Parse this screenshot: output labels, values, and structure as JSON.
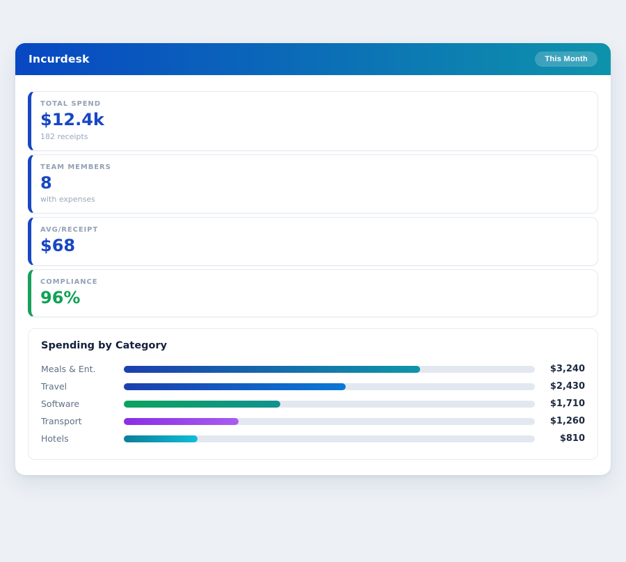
{
  "page": {
    "background": "#edf1f6"
  },
  "header": {
    "title": "Incurdesk",
    "badge": "This Month",
    "gradient_start": "#0847c3",
    "gradient_end": "#0e93ab"
  },
  "stats": [
    {
      "label": "TOTAL SPEND",
      "value": "$12.4k",
      "sub": "182 receipts",
      "accent": "#1747c2",
      "value_color": "#1747c2"
    },
    {
      "label": "TEAM MEMBERS",
      "value": "8",
      "sub": "with expenses",
      "accent": "#1747c2",
      "value_color": "#1747c2"
    },
    {
      "label": "AVG/RECEIPT",
      "value": "$68",
      "accent": "#1747c2",
      "value_color": "#1747c2"
    },
    {
      "label": "COMPLIANCE",
      "value": "96%",
      "accent": "#16a05a",
      "value_color": "#12a155"
    }
  ],
  "chart_data": {
    "type": "bar",
    "orientation": "horizontal",
    "title": "Spending by Category",
    "categories": [
      "Meals & Ent.",
      "Travel",
      "Software",
      "Transport",
      "Hotels"
    ],
    "values": [
      3240,
      2430,
      1710,
      1260,
      810
    ],
    "value_labels": [
      "$3,240",
      "$2,430",
      "$1,710",
      "$1,260",
      "$810"
    ],
    "xlim": [
      0,
      4500
    ],
    "grid": false,
    "legend": "none",
    "track_color": "#e3e8f0",
    "bar_gradients": [
      [
        "#1c3fae",
        "#0e96a8"
      ],
      [
        "#1c3fae",
        "#0a78d6"
      ],
      [
        "#0aa35e",
        "#12918f"
      ],
      [
        "#8a2ee4",
        "#a85cf0"
      ],
      [
        "#0c7f98",
        "#11bcd9"
      ]
    ]
  }
}
